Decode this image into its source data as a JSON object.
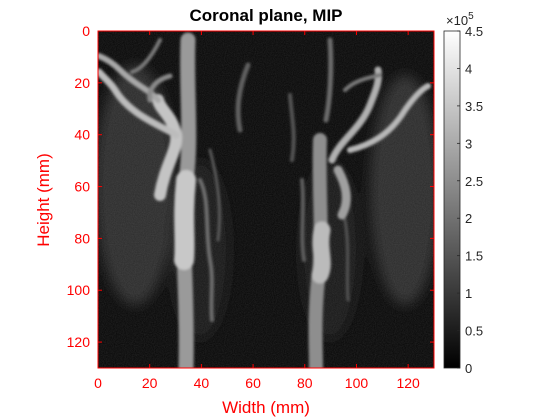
{
  "chart_data": {
    "type": "heatmap",
    "title": "Coronal plane, MIP",
    "xlabel": "Width (mm)",
    "ylabel": "Height (mm)",
    "xlim": [
      0,
      130
    ],
    "ylim": [
      0,
      130
    ],
    "x_ticks": [
      "0",
      "20",
      "40",
      "60",
      "80",
      "100",
      "120"
    ],
    "y_ticks": [
      "0",
      "20",
      "40",
      "60",
      "80",
      "100",
      "120"
    ],
    "axis_color": "#ff0000",
    "colormap": "gray",
    "colorbar": {
      "range": [
        0,
        450000
      ],
      "ticks": [
        "0",
        "0.5",
        "1",
        "1.5",
        "2",
        "2.5",
        "3",
        "3.5",
        "4",
        "4.5"
      ],
      "exponent_base": "×10",
      "exponent_power": "5"
    }
  }
}
